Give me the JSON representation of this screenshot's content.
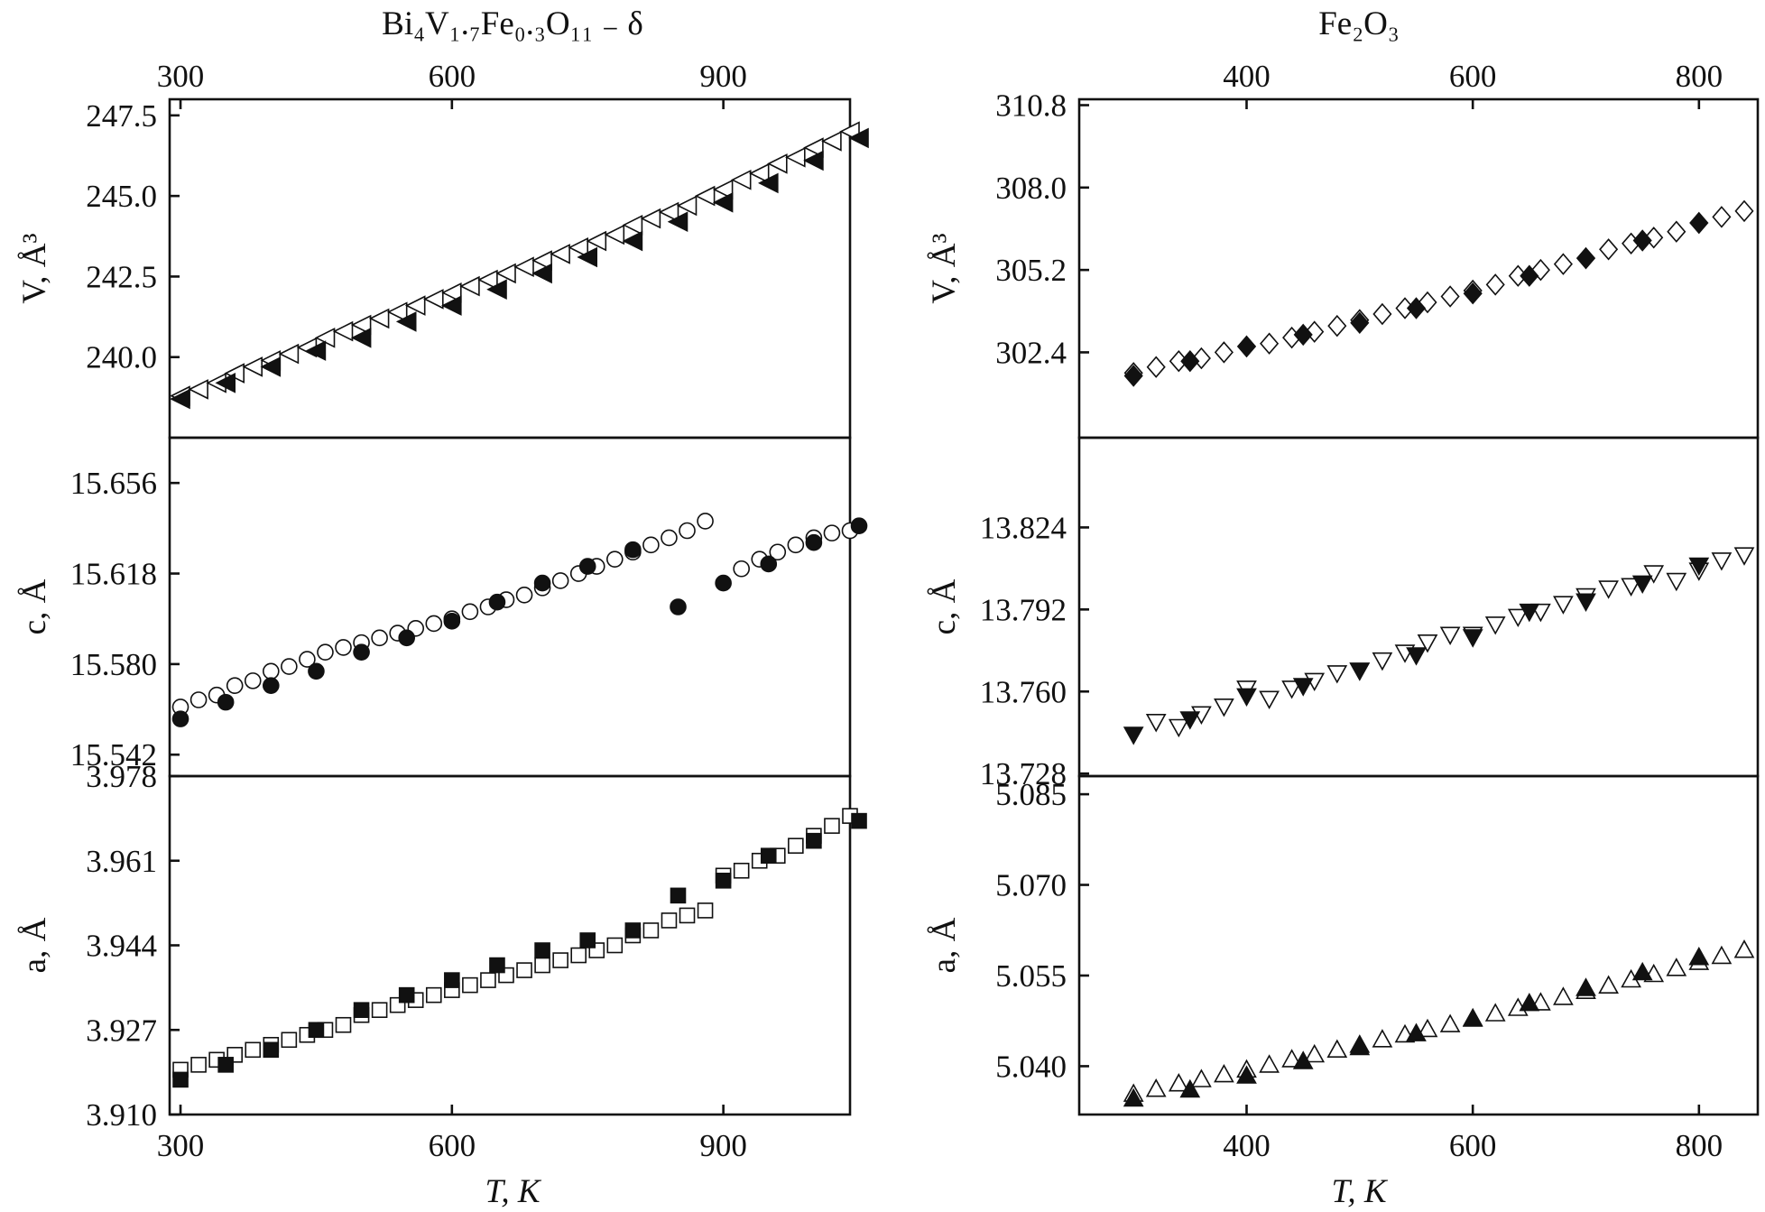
{
  "figure": {
    "left_title": "Bi₄V₁.₇Fe₀.₃O₁₁ ₋ δ",
    "right_title": "Fe₂O₃",
    "xlabel_left": "T, K",
    "xlabel_right": "T, K"
  },
  "chart_data": [
    {
      "type": "scatter",
      "title": "Bi₄V₁.₇Fe₀.₃O₁₁ ₋ δ",
      "xlabel": "",
      "ylabel": "V, Å³",
      "xlim": [
        288,
        1040
      ],
      "ylim": [
        237.5,
        248.0
      ],
      "xticks": [
        300,
        600,
        900
      ],
      "xtick_labels": [
        "300",
        "600",
        "900"
      ],
      "yticks": [
        240.0,
        242.5,
        245.0,
        247.5
      ],
      "ytick_labels": [
        "240.0",
        "242.5",
        "245.0",
        "247.5"
      ],
      "series": [
        {
          "marker": "tri-left",
          "filled": false,
          "color": "#111111",
          "x": [
            300,
            320,
            340,
            360,
            380,
            400,
            420,
            440,
            460,
            480,
            500,
            520,
            540,
            560,
            580,
            600,
            620,
            640,
            660,
            680,
            700,
            720,
            740,
            760,
            780,
            800,
            820,
            840,
            860,
            880,
            900,
            920,
            940,
            960,
            980,
            1000,
            1020,
            1040
          ],
          "y": [
            238.8,
            239.0,
            239.2,
            239.5,
            239.7,
            239.9,
            240.1,
            240.3,
            240.6,
            240.8,
            241.0,
            241.2,
            241.4,
            241.6,
            241.8,
            242.0,
            242.2,
            242.4,
            242.6,
            242.8,
            243.0,
            243.2,
            243.4,
            243.6,
            243.8,
            244.1,
            244.3,
            244.5,
            244.7,
            245.0,
            245.2,
            245.5,
            245.7,
            246.0,
            246.2,
            246.5,
            246.7,
            247.0
          ]
        },
        {
          "marker": "tri-left",
          "filled": true,
          "color": "#111111",
          "x": [
            300,
            350,
            400,
            450,
            500,
            550,
            600,
            650,
            700,
            750,
            800,
            850,
            900,
            950,
            1000,
            1050
          ],
          "y": [
            238.7,
            239.2,
            239.7,
            240.2,
            240.6,
            241.1,
            241.6,
            242.1,
            242.6,
            243.1,
            243.6,
            244.2,
            244.8,
            245.4,
            246.1,
            246.8
          ]
        }
      ]
    },
    {
      "type": "scatter",
      "xlabel": "",
      "ylabel": "c, Å",
      "xlim": [
        288,
        1040
      ],
      "ylim": [
        15.533,
        15.675
      ],
      "yticks": [
        15.542,
        15.58,
        15.618,
        15.656
      ],
      "ytick_labels": [
        "15.542",
        "15.580",
        "15.618",
        "15.656"
      ],
      "series": [
        {
          "marker": "circle",
          "filled": false,
          "color": "#111111",
          "x": [
            300,
            320,
            340,
            360,
            380,
            400,
            420,
            440,
            460,
            480,
            500,
            520,
            540,
            560,
            580,
            600,
            620,
            640,
            660,
            680,
            700,
            720,
            740,
            760,
            780,
            800,
            820,
            840,
            860,
            880,
            920,
            940,
            960,
            980,
            1000,
            1020,
            1040
          ],
          "y": [
            15.562,
            15.565,
            15.567,
            15.571,
            15.573,
            15.577,
            15.579,
            15.582,
            15.585,
            15.587,
            15.589,
            15.591,
            15.593,
            15.595,
            15.597,
            15.599,
            15.602,
            15.604,
            15.607,
            15.609,
            15.612,
            15.615,
            15.618,
            15.621,
            15.624,
            15.627,
            15.63,
            15.633,
            15.636,
            15.64,
            15.62,
            15.624,
            15.627,
            15.63,
            15.633,
            15.635,
            15.636
          ]
        },
        {
          "marker": "circle",
          "filled": true,
          "color": "#111111",
          "x": [
            300,
            350,
            400,
            450,
            500,
            550,
            600,
            650,
            700,
            750,
            800,
            850,
            900,
            950,
            1000,
            1050
          ],
          "y": [
            15.557,
            15.564,
            15.571,
            15.577,
            15.585,
            15.591,
            15.598,
            15.606,
            15.614,
            15.621,
            15.628,
            15.604,
            15.614,
            15.622,
            15.631,
            15.638
          ]
        }
      ]
    },
    {
      "type": "scatter",
      "xlabel": "T, K",
      "ylabel": "a, Å",
      "xlim": [
        288,
        1040
      ],
      "ylim": [
        3.91,
        3.978
      ],
      "xticks": [
        300,
        600,
        900
      ],
      "xtick_labels": [
        "300",
        "600",
        "900"
      ],
      "yticks": [
        3.91,
        3.927,
        3.944,
        3.961,
        3.978
      ],
      "ytick_labels": [
        "3.910",
        "3.927",
        "3.944",
        "3.961",
        "3.978"
      ],
      "series": [
        {
          "marker": "square",
          "filled": false,
          "color": "#111111",
          "x": [
            300,
            320,
            340,
            360,
            380,
            400,
            420,
            440,
            460,
            480,
            500,
            520,
            540,
            560,
            580,
            600,
            620,
            640,
            660,
            680,
            700,
            720,
            740,
            760,
            780,
            800,
            820,
            840,
            860,
            880,
            900,
            920,
            940,
            960,
            980,
            1000,
            1020,
            1040
          ],
          "y": [
            3.919,
            3.92,
            3.921,
            3.922,
            3.923,
            3.924,
            3.925,
            3.926,
            3.927,
            3.928,
            3.93,
            3.931,
            3.932,
            3.933,
            3.934,
            3.935,
            3.936,
            3.937,
            3.938,
            3.939,
            3.94,
            3.941,
            3.942,
            3.943,
            3.944,
            3.946,
            3.947,
            3.949,
            3.95,
            3.951,
            3.958,
            3.959,
            3.961,
            3.962,
            3.964,
            3.966,
            3.968,
            3.97
          ]
        },
        {
          "marker": "square",
          "filled": true,
          "color": "#111111",
          "x": [
            300,
            350,
            400,
            450,
            500,
            550,
            600,
            650,
            700,
            750,
            800,
            850,
            900,
            950,
            1000,
            1050
          ],
          "y": [
            3.917,
            3.92,
            3.923,
            3.927,
            3.931,
            3.934,
            3.937,
            3.94,
            3.943,
            3.945,
            3.947,
            3.954,
            3.957,
            3.962,
            3.965,
            3.969
          ]
        }
      ]
    },
    {
      "type": "scatter",
      "title": "Fe₂O₃",
      "xlabel": "",
      "ylabel": "V, Å³",
      "xlim": [
        252,
        852
      ],
      "ylim": [
        299.5,
        311.0
      ],
      "xticks": [
        400,
        600,
        800
      ],
      "xtick_labels": [
        "400",
        "600",
        "800"
      ],
      "yticks": [
        302.4,
        305.2,
        308.0,
        310.8
      ],
      "ytick_labels": [
        "302.4",
        "305.2",
        "308.0",
        "310.8"
      ],
      "series": [
        {
          "marker": "diamond",
          "filled": false,
          "color": "#111111",
          "x": [
            300,
            320,
            340,
            360,
            380,
            400,
            420,
            440,
            460,
            480,
            500,
            520,
            540,
            560,
            580,
            600,
            620,
            640,
            660,
            680,
            700,
            720,
            740,
            760,
            780,
            800,
            820,
            840
          ],
          "y": [
            301.7,
            301.9,
            302.1,
            302.2,
            302.4,
            302.6,
            302.7,
            302.9,
            303.1,
            303.3,
            303.5,
            303.7,
            303.9,
            304.1,
            304.3,
            304.5,
            304.7,
            305.0,
            305.2,
            305.4,
            305.6,
            305.9,
            306.1,
            306.3,
            306.5,
            306.8,
            307.0,
            307.2
          ]
        },
        {
          "marker": "diamond",
          "filled": true,
          "color": "#111111",
          "x": [
            300,
            350,
            400,
            450,
            500,
            550,
            600,
            650,
            700,
            750,
            800
          ],
          "y": [
            301.6,
            302.1,
            302.6,
            303.0,
            303.4,
            303.9,
            304.4,
            305.0,
            305.6,
            306.2,
            306.8
          ]
        }
      ]
    },
    {
      "type": "scatter",
      "xlabel": "",
      "ylabel": "c, Å",
      "xlim": [
        252,
        852
      ],
      "ylim": [
        13.727,
        13.859
      ],
      "yticks": [
        13.728,
        13.76,
        13.792,
        13.824
      ],
      "ytick_labels": [
        "13.728",
        "13.760",
        "13.792",
        "13.824"
      ],
      "series": [
        {
          "marker": "tri-down",
          "filled": false,
          "color": "#111111",
          "x": [
            320,
            340,
            360,
            380,
            400,
            420,
            440,
            460,
            480,
            500,
            520,
            540,
            560,
            580,
            600,
            620,
            640,
            660,
            680,
            700,
            720,
            740,
            760,
            780,
            800,
            820,
            840
          ],
          "y": [
            13.748,
            13.746,
            13.751,
            13.754,
            13.761,
            13.757,
            13.761,
            13.764,
            13.767,
            13.768,
            13.772,
            13.775,
            13.779,
            13.782,
            13.782,
            13.786,
            13.789,
            13.791,
            13.794,
            13.797,
            13.8,
            13.801,
            13.806,
            13.803,
            13.807,
            13.811,
            13.813
          ]
        },
        {
          "marker": "tri-down",
          "filled": true,
          "color": "#111111",
          "x": [
            300,
            350,
            400,
            450,
            500,
            550,
            600,
            650,
            700,
            750,
            800
          ],
          "y": [
            13.743,
            13.749,
            13.758,
            13.762,
            13.768,
            13.774,
            13.781,
            13.791,
            13.795,
            13.802,
            13.809
          ]
        }
      ]
    },
    {
      "type": "scatter",
      "xlabel": "T, K",
      "ylabel": "a, Å",
      "xlim": [
        252,
        852
      ],
      "ylim": [
        5.032,
        5.088
      ],
      "xticks": [
        400,
        600,
        800
      ],
      "xtick_labels": [
        "400",
        "600",
        "800"
      ],
      "yticks": [
        5.04,
        5.055,
        5.07,
        5.085
      ],
      "ytick_labels": [
        "5.040",
        "5.055",
        "5.070",
        "5.085"
      ],
      "series": [
        {
          "marker": "tri-up",
          "filled": false,
          "color": "#111111",
          "x": [
            300,
            320,
            340,
            360,
            380,
            400,
            420,
            440,
            460,
            480,
            500,
            520,
            540,
            560,
            580,
            600,
            620,
            640,
            660,
            680,
            700,
            720,
            740,
            760,
            780,
            800,
            820,
            840
          ],
          "y": [
            5.0355,
            5.0363,
            5.0372,
            5.0379,
            5.0387,
            5.0395,
            5.0403,
            5.0412,
            5.042,
            5.0428,
            5.0436,
            5.0445,
            5.0453,
            5.0462,
            5.047,
            5.0479,
            5.0488,
            5.0497,
            5.0506,
            5.0515,
            5.0525,
            5.0534,
            5.0544,
            5.0553,
            5.0563,
            5.0573,
            5.0583,
            5.0593
          ]
        },
        {
          "marker": "tri-up",
          "filled": true,
          "color": "#111111",
          "x": [
            300,
            350,
            400,
            450,
            500,
            550,
            600,
            650,
            700,
            750,
            800
          ],
          "y": [
            5.0347,
            5.0362,
            5.0385,
            5.0409,
            5.0432,
            5.0455,
            5.048,
            5.0505,
            5.053,
            5.0556,
            5.0581
          ]
        }
      ]
    }
  ]
}
